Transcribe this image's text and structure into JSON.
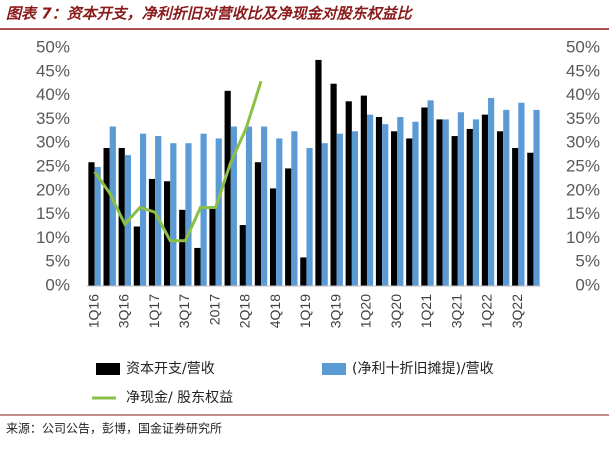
{
  "chart_data": {
    "type": "bar",
    "title": "图表 7：资本开支，净利折旧对营收比及净现金对股东权益比",
    "source": "来源：公司公告，彭博，国金证券研究所",
    "categories": [
      "1Q16",
      null,
      "3Q16",
      null,
      "1Q17",
      null,
      "3Q17",
      null,
      "2017",
      null,
      "2Q18",
      null,
      "4Q18",
      null,
      "1Q19",
      null,
      "3Q19",
      null,
      "1Q20",
      null,
      "3Q20",
      null,
      "1Q21",
      null,
      "3Q21",
      null,
      "1Q22",
      null,
      "3Q22",
      null
    ],
    "series": [
      {
        "name": "资本开支/营收",
        "type": "bar",
        "color": "#000000",
        "values": [
          26,
          29,
          29,
          12.5,
          22.5,
          22,
          16,
          8,
          16.5,
          41,
          12.8,
          26,
          20.5,
          24.7,
          6,
          47.5,
          42.5,
          38.8,
          40,
          35.5,
          32.5,
          31,
          37.5,
          35,
          31.5,
          33,
          36,
          32.5,
          29,
          28
        ]
      },
      {
        "name": "(净利十折旧摊提)/营收",
        "type": "bar",
        "color": "#5b9bd5",
        "values": [
          25,
          33.5,
          27.5,
          32,
          31.5,
          30,
          30,
          32,
          31,
          33.5,
          33.5,
          33.5,
          31,
          32.5,
          29,
          30,
          32,
          32.5,
          36,
          34,
          35.5,
          34.5,
          39,
          35,
          36.5,
          35,
          39.5,
          37,
          38.5,
          37
        ]
      },
      {
        "name": "净现金/ 股东权益",
        "type": "line",
        "color": "#8cbf45",
        "values": [
          24,
          19.5,
          13,
          16.5,
          15.5,
          9.5,
          9.5,
          16.5,
          16.5,
          26,
          33,
          43,
          null,
          null,
          null,
          null,
          null,
          null,
          null,
          null,
          null,
          null,
          null,
          null,
          null,
          null,
          null,
          null,
          null,
          null
        ]
      }
    ],
    "ylim": [
      0,
      50
    ],
    "yticks": [
      {
        "value": 0,
        "label": "0%"
      },
      {
        "value": 5,
        "label": "5%"
      },
      {
        "value": 10,
        "label": "10%"
      },
      {
        "value": 15,
        "label": "15%"
      },
      {
        "value": 20,
        "label": "20%"
      },
      {
        "value": 25,
        "label": "25%"
      },
      {
        "value": 30,
        "label": "30%"
      },
      {
        "value": 35,
        "label": "35%"
      },
      {
        "value": 40,
        "label": "40%"
      },
      {
        "value": 45,
        "label": "45%"
      },
      {
        "value": 50,
        "label": "50%"
      }
    ],
    "y2lim": [
      0,
      50
    ],
    "y2ticks": [
      {
        "value": 0,
        "label": "0%"
      },
      {
        "value": 5,
        "label": "5%"
      },
      {
        "value": 10,
        "label": "10%"
      },
      {
        "value": 15,
        "label": "15%"
      },
      {
        "value": 20,
        "label": "20%"
      },
      {
        "value": 25,
        "label": "25%"
      },
      {
        "value": 30,
        "label": "30%"
      },
      {
        "value": 35,
        "label": "35%"
      },
      {
        "value": 40,
        "label": "40%"
      },
      {
        "value": 45,
        "label": "45%"
      },
      {
        "value": 50,
        "label": "50%"
      }
    ]
  }
}
